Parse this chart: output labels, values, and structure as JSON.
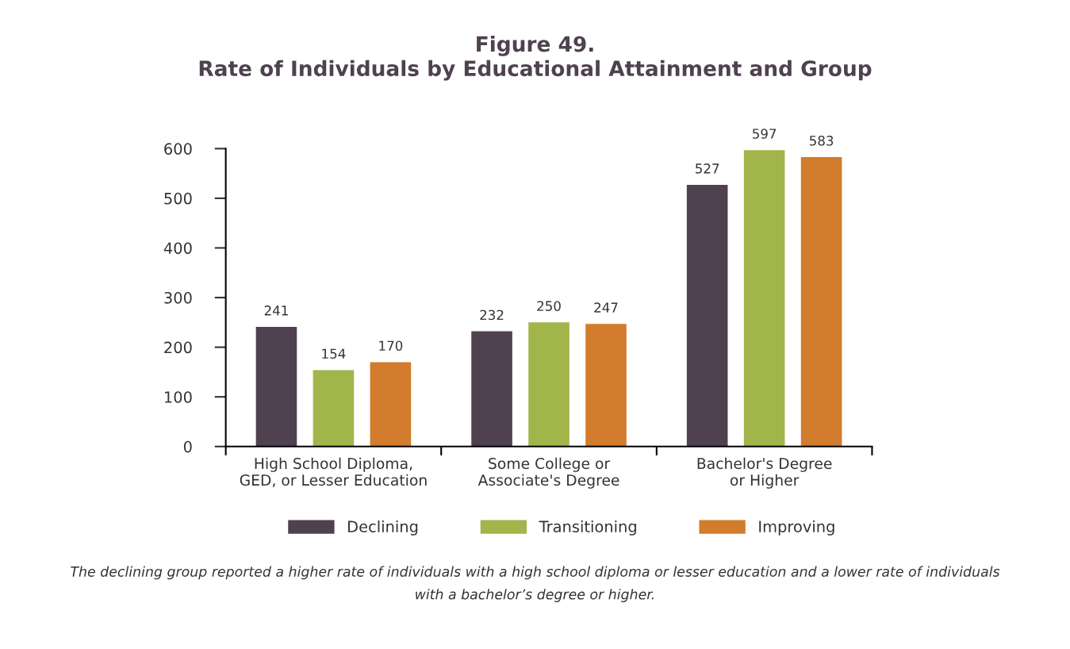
{
  "chart_data": {
    "type": "bar",
    "title": "Figure 49.\nRate of Individuals by Educational Attainment and Group",
    "categories": [
      "High School Diploma,\nGED, or Lesser Education",
      "Some College or\nAssociate's Degree",
      "Bachelor's Degree\nor Higher"
    ],
    "series": [
      {
        "name": "Declining",
        "color": "#4f4150",
        "values": [
          241,
          232,
          527
        ]
      },
      {
        "name": "Transitioning",
        "color": "#a1b54b",
        "values": [
          154,
          250,
          597
        ]
      },
      {
        "name": "Improving",
        "color": "#d27c2d",
        "values": [
          170,
          247,
          583
        ]
      }
    ],
    "ylim": [
      0,
      600
    ],
    "yticks": [
      0,
      100,
      200,
      300,
      400,
      500,
      600
    ],
    "data_labels": true,
    "grid": false,
    "legend": "bottom",
    "annotations": [
      "The declining group reported a higher rate of individuals with a high school diploma or lesser education and a lower rate of individuals with a bachelor’s degree or higher."
    ]
  }
}
